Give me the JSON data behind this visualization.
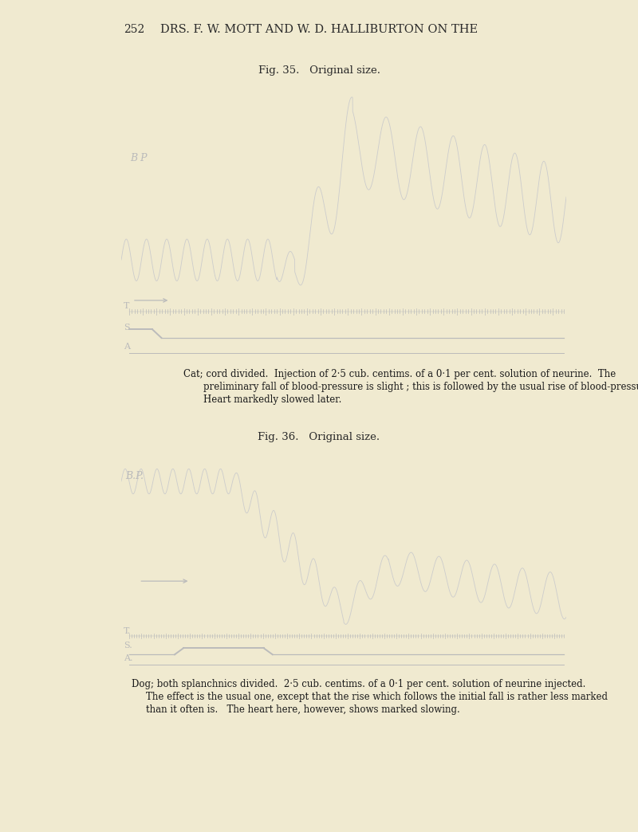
{
  "page_number": "252",
  "header_text": "DRS. F. W. MOTT AND W. D. HALLIBURTON ON THE",
  "fig35_title": "Fig. 35.   Original size.",
  "fig36_title": "Fig. 36.   Original size.",
  "fig35_caption_line1": "Cat; cord divided.  Injection of 2·5 cub. centims. of a 0·1 per cent. solution of neurine.  The",
  "fig35_caption_line2": "preliminary fall of blood-pressure is slight ; this is followed by the usual rise of blood-pressure.",
  "fig35_caption_line3": "Heart markedly slowed later.",
  "fig36_caption_line1": "Dog; both splanchnics divided.  2·5 cub. centims. of a 0·1 per cent. solution of neurine injected.",
  "fig36_caption_line2": "The effect is the usual one, except that the rise which follows the initial fall is rather less marked",
  "fig36_caption_line3": "than it often is.   The heart here, however, shows marked slowing.",
  "bg_color": "#000000",
  "page_bg": "#f0ead0",
  "trace_color": "#cccccc",
  "label_color": "#bbbbbb",
  "gray_strip_color": "#aaaaaa",
  "dark_gray_strip": "#555555"
}
